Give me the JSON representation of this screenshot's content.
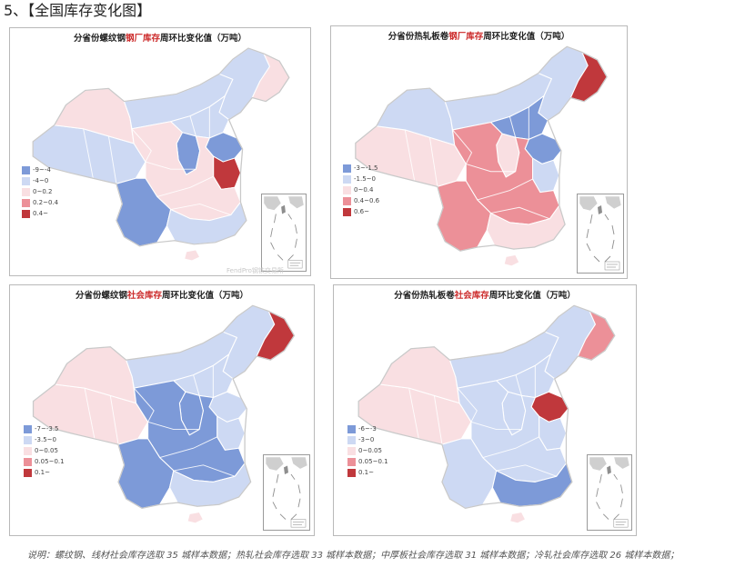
{
  "section_title": "5、【全国库存变化图】",
  "note": "说明：螺纹钢、线材社会库存选取 35 城样本数据；热轧社会库存选取 33 城样本数据；中厚板社会库存选取 31 城样本数据；冷轧社会库存选取 26 城样本数据；",
  "panels": [
    {
      "title_pre": "分省份螺纹钢",
      "title_hl": "钢厂库存",
      "title_post": "周环比变化值（万吨）",
      "watermark": "FendPro钢铁交易所",
      "legend": [
        {
          "label": "-9~-4",
          "color": "#7d9ad8"
        },
        {
          "label": "-4~0",
          "color": "#cdd9f3"
        },
        {
          "label": "0~0.2",
          "color": "#f9dfe2"
        },
        {
          "label": "0.2~0.4",
          "color": "#ec9098"
        },
        {
          "label": "0.4~",
          "color": "#c0383c"
        }
      ],
      "regions": {
        "west": "#cdd9f3",
        "northwest": "#f9dfe2",
        "inner_mongolia": "#cdd9f3",
        "northeast": "#cdd9f3",
        "heilongjiang_east": "#f9dfe2",
        "north_china": "#cdd9f3",
        "shanxi_hebei": "#7d9ad8",
        "shandong_jiangsu": "#7d9ad8",
        "anhui": "#c0383c",
        "central": "#f9dfe2",
        "sichuan_yunnan": "#7d9ad8",
        "south": "#cdd9f3",
        "hainan": "#f9dfe2"
      }
    },
    {
      "title_pre": "分省份热轧板卷",
      "title_hl": "钢厂库存",
      "title_post": "周环比变化值（万吨）",
      "watermark": "",
      "legend": [
        {
          "label": "-3~-1.5",
          "color": "#7d9ad8"
        },
        {
          "label": "-1.5~0",
          "color": "#cdd9f3"
        },
        {
          "label": "0~0.4",
          "color": "#f9dfe2"
        },
        {
          "label": "0.4~0.6",
          "color": "#ec9098"
        },
        {
          "label": "0.6~",
          "color": "#c0383c"
        }
      ],
      "regions": {
        "west": "#f9dfe2",
        "northwest": "#cdd9f3",
        "inner_mongolia": "#cdd9f3",
        "northeast": "#cdd9f3",
        "heilongjiang_east": "#c0383c",
        "north_china": "#7d9ad8",
        "shanxi_hebei": "#f9dfe2",
        "shandong_jiangsu": "#7d9ad8",
        "anhui": "#cdd9f3",
        "central": "#ec9098",
        "sichuan_yunnan": "#ec9098",
        "south": "#f9dfe2",
        "hainan": "#f9dfe2"
      }
    },
    {
      "title_pre": "分省份螺纹钢",
      "title_hl": "社会库存",
      "title_post": "周环比变化值（万吨）",
      "watermark": "",
      "legend": [
        {
          "label": "-7~-3.5",
          "color": "#7d9ad8"
        },
        {
          "label": "-3.5~0",
          "color": "#cdd9f3"
        },
        {
          "label": "0~0.05",
          "color": "#f9dfe2"
        },
        {
          "label": "0.05~0.1",
          "color": "#ec9098"
        },
        {
          "label": "0.1~",
          "color": "#c0383c"
        }
      ],
      "regions": {
        "west": "#f9dfe2",
        "northwest": "#f9dfe2",
        "inner_mongolia": "#cdd9f3",
        "northeast": "#cdd9f3",
        "heilongjiang_east": "#c0383c",
        "north_china": "#cdd9f3",
        "shanxi_hebei": "#7d9ad8",
        "shandong_jiangsu": "#cdd9f3",
        "anhui": "#cdd9f3",
        "central": "#7d9ad8",
        "sichuan_yunnan": "#7d9ad8",
        "south": "#cdd9f3",
        "hainan": "#f9dfe2"
      }
    },
    {
      "title_pre": "分省份热轧板卷",
      "title_hl": "社会库存",
      "title_post": "周环比变化值（万吨）",
      "watermark": "",
      "legend": [
        {
          "label": "-6~-3",
          "color": "#7d9ad8"
        },
        {
          "label": "-3~0",
          "color": "#cdd9f3"
        },
        {
          "label": "0~0.05",
          "color": "#f9dfe2"
        },
        {
          "label": "0.05~0.1",
          "color": "#ec9098"
        },
        {
          "label": "0.1~",
          "color": "#c0383c"
        }
      ],
      "regions": {
        "west": "#f9dfe2",
        "northwest": "#f9dfe2",
        "inner_mongolia": "#cdd9f3",
        "northeast": "#cdd9f3",
        "heilongjiang_east": "#ec9098",
        "north_china": "#cdd9f3",
        "shanxi_hebei": "#cdd9f3",
        "shandong_jiangsu": "#c0383c",
        "anhui": "#cdd9f3",
        "central": "#cdd9f3",
        "sichuan_yunnan": "#cdd9f3",
        "south": "#7d9ad8",
        "hainan": "#f9dfe2"
      }
    }
  ]
}
